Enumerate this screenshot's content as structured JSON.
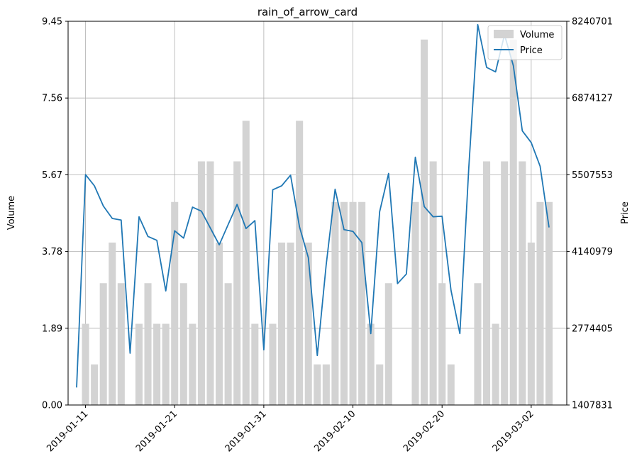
{
  "chart_data": {
    "type": "bar+line",
    "title": "rain_of_arrow_card",
    "ylabel_left": "Volume",
    "ylabel_right": "Price",
    "grid": true,
    "legend": {
      "placement": "top-right",
      "entries": [
        "Volume",
        "Price"
      ]
    },
    "left_axis": {
      "ylim": [
        0,
        9.45
      ],
      "ticks": [
        "0.00",
        "1.89",
        "3.78",
        "5.67",
        "7.56",
        "9.45"
      ]
    },
    "right_axis": {
      "ylim": [
        1407831,
        8240701
      ],
      "ticks": [
        "1407831",
        "2774405",
        "4140979",
        "5507553",
        "6874127",
        "8240701"
      ]
    },
    "x_axis": {
      "start": "2019-01-10",
      "end": "2019-03-04",
      "ticks": [
        "2019-01-11",
        "2019-01-21",
        "2019-01-31",
        "2019-02-10",
        "2019-02-20",
        "2019-03-02"
      ]
    },
    "colors": {
      "bars": "#d3d3d3",
      "line": "#1f77b4",
      "grid": "#b0b0b0"
    },
    "volume": {
      "x": [
        "2019-01-11",
        "2019-01-12",
        "2019-01-13",
        "2019-01-14",
        "2019-01-15",
        "2019-01-17",
        "2019-01-18",
        "2019-01-19",
        "2019-01-20",
        "2019-01-21",
        "2019-01-22",
        "2019-01-23",
        "2019-01-24",
        "2019-01-25",
        "2019-01-26",
        "2019-01-27",
        "2019-01-28",
        "2019-01-29",
        "2019-01-30",
        "2019-02-01",
        "2019-02-02",
        "2019-02-03",
        "2019-02-04",
        "2019-02-05",
        "2019-02-06",
        "2019-02-07",
        "2019-02-08",
        "2019-02-09",
        "2019-02-10",
        "2019-02-11",
        "2019-02-12",
        "2019-02-13",
        "2019-02-14",
        "2019-02-17",
        "2019-02-18",
        "2019-02-19",
        "2019-02-20",
        "2019-02-21",
        "2019-02-24",
        "2019-02-25",
        "2019-02-26",
        "2019-02-27",
        "2019-02-28",
        "2019-03-01",
        "2019-03-02",
        "2019-03-03",
        "2019-03-04"
      ],
      "values": [
        2,
        1,
        3,
        4,
        3,
        2,
        3,
        2,
        2,
        5,
        3,
        2,
        6,
        6,
        4,
        3,
        6,
        7,
        2,
        2,
        4,
        4,
        7,
        4,
        1,
        1,
        5,
        5,
        5,
        5,
        2,
        1,
        3,
        5,
        9,
        6,
        3,
        1,
        3,
        6,
        2,
        6,
        9,
        6,
        4,
        5,
        5
      ]
    },
    "price": {
      "x": [
        "2019-01-10",
        "2019-01-11",
        "2019-01-12",
        "2019-01-13",
        "2019-01-14",
        "2019-01-15",
        "2019-01-16",
        "2019-01-17",
        "2019-01-18",
        "2019-01-19",
        "2019-01-20",
        "2019-01-21",
        "2019-01-22",
        "2019-01-23",
        "2019-01-24",
        "2019-01-25",
        "2019-01-26",
        "2019-01-27",
        "2019-01-28",
        "2019-01-29",
        "2019-01-30",
        "2019-01-31",
        "2019-02-01",
        "2019-02-02",
        "2019-02-03",
        "2019-02-04",
        "2019-02-05",
        "2019-02-06",
        "2019-02-07",
        "2019-02-08",
        "2019-02-09",
        "2019-02-10",
        "2019-02-11",
        "2019-02-12",
        "2019-02-13",
        "2019-02-14",
        "2019-02-15",
        "2019-02-16",
        "2019-02-17",
        "2019-02-18",
        "2019-02-19",
        "2019-02-20",
        "2019-02-21",
        "2019-02-22",
        "2019-02-23",
        "2019-02-24",
        "2019-02-25",
        "2019-02-26",
        "2019-02-27",
        "2019-02-28",
        "2019-03-01",
        "2019-03-02",
        "2019-03-03",
        "2019-03-04"
      ],
      "values": [
        1720000,
        5510000,
        5310000,
        4950000,
        4730000,
        4700000,
        2330000,
        4760000,
        4410000,
        4340000,
        3440000,
        4510000,
        4380000,
        4930000,
        4860000,
        4560000,
        4260000,
        4620000,
        4980000,
        4550000,
        4690000,
        2390000,
        5240000,
        5310000,
        5500000,
        4580000,
        4030000,
        2290000,
        3900000,
        5250000,
        4530000,
        4500000,
        4300000,
        2680000,
        4850000,
        5530000,
        3570000,
        3740000,
        5820000,
        4940000,
        4760000,
        4770000,
        3450000,
        2680000,
        5640000,
        8180000,
        7420000,
        7340000,
        8000000,
        7450000,
        6290000,
        6080000,
        5660000,
        4570000
      ]
    }
  }
}
